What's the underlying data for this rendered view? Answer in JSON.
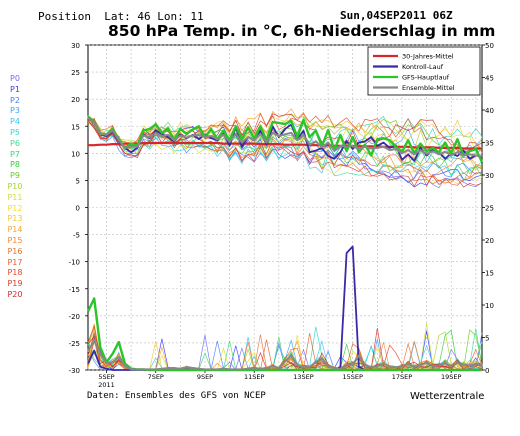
{
  "header": {
    "position_label": "Position",
    "lat_lon": "Lat: 46 Lon: 11",
    "run_date": "Sun,04SEP2011 06Z",
    "title": "850 hPa Temp. in °C, 6h-Niederschlag in mm"
  },
  "members": [
    "P0",
    "P1",
    "P2",
    "P3",
    "P4",
    "P5",
    "P6",
    "P7",
    "P8",
    "P9",
    "P10",
    "P11",
    "P12",
    "P13",
    "P14",
    "P15",
    "P16",
    "P17",
    "P18",
    "P19",
    "P20"
  ],
  "member_colors": [
    "#6f6ff7",
    "#3a3aff",
    "#4a7cff",
    "#3aa4ff",
    "#39c6ee",
    "#30d6c8",
    "#3adc9e",
    "#3ad870",
    "#35cc35",
    "#66cc22",
    "#a8d422",
    "#d8e030",
    "#f2dc3a",
    "#f5c437",
    "#f5a232",
    "#f08a2c",
    "#ee7030",
    "#ea5e2e",
    "#e24a2a",
    "#d83c2c",
    "#c82e2e"
  ],
  "footer": {
    "source": "Daten: Ensembles des GFS von NCEP",
    "brand": "Wetterzentrale"
  },
  "colors": {
    "climate": "#d9262a",
    "control": "#3a2aa8",
    "main": "#2bc42b",
    "ensemble": "#888888"
  },
  "chart_data": {
    "type": "line",
    "x_start": "2011-09-04 06Z",
    "x_step_hours": 6,
    "x_ticks": [
      "5SEP\n2011",
      "7SEP",
      "9SEP",
      "11SEP",
      "13SEP",
      "15SEP",
      "17SEP",
      "19SEP"
    ],
    "y_left": {
      "label": "850 hPa Temp. in °C",
      "range": [
        -30,
        30
      ],
      "ticks": [
        30,
        25,
        20,
        15,
        10,
        5,
        0,
        -5,
        -10,
        -15,
        -20,
        -25,
        -30
      ]
    },
    "y_right": {
      "label": "6h-Niederschlag in mm",
      "range": [
        0,
        50
      ],
      "ticks": [
        50,
        45,
        40,
        35,
        30,
        25,
        20,
        15,
        10,
        5,
        0
      ]
    },
    "grid": true,
    "legend_position": "top-right",
    "legend": [
      "30-Jahres-Mittel",
      "Kontroll-Lauf",
      "GFS-Hauptlauf",
      "Ensemble-Mittel"
    ],
    "series": [
      {
        "name": "30-Jahres-Mittel",
        "axis": "left",
        "values": [
          11.5,
          11.5,
          11.6,
          11.6,
          11.7,
          11.7,
          11.8,
          11.8,
          11.8,
          11.9,
          11.9,
          11.9,
          11.9,
          11.9,
          11.9,
          11.9,
          11.9,
          11.9,
          11.9,
          11.9,
          11.9,
          11.9,
          11.8,
          11.8,
          11.8,
          11.8,
          11.8,
          11.8,
          11.7,
          11.7,
          11.7,
          11.7,
          11.6,
          11.6,
          11.6,
          11.6,
          11.5,
          11.5,
          11.5,
          11.5,
          11.4,
          11.4,
          11.4,
          11.4,
          11.3,
          11.3,
          11.3,
          11.3,
          11.2,
          11.2,
          11.2,
          11.2,
          11.2,
          11.1,
          11.1,
          11.1,
          11.1,
          11.0,
          11.0,
          11.0,
          11.0,
          10.9,
          10.9,
          10.9,
          10.9
        ]
      },
      {
        "name": "Kontroll-Lauf",
        "axis": "left",
        "values": [
          16.5,
          15.8,
          13.5,
          13.2,
          14.0,
          12.2,
          11.0,
          10.2,
          11.0,
          13.5,
          12.8,
          14.2,
          13.6,
          13.0,
          12.2,
          13.5,
          12.8,
          13.4,
          12.6,
          13.5,
          12.8,
          12.4,
          13.6,
          11.4,
          14.8,
          11.2,
          13.0,
          12.4,
          14.2,
          11.6,
          15.0,
          13.0,
          14.5,
          15.3,
          12.6,
          14.2,
          10.2,
          10.5,
          11.0,
          9.5,
          9.0,
          10.2,
          12.3,
          10.8,
          12.0,
          12.2,
          13.0,
          11.4,
          12.0,
          11.0,
          11.5,
          8.8,
          9.8,
          8.6,
          11.0,
          9.6,
          10.8,
          10.2,
          9.0,
          10.0,
          9.5,
          10.5,
          9.0,
          9.6,
          9.4
        ]
      },
      {
        "name": "GFS-Hauptlauf",
        "axis": "left",
        "values": [
          16.8,
          15.8,
          13.6,
          13.5,
          14.5,
          12.6,
          11.0,
          11.8,
          11.4,
          14.2,
          14.5,
          15.3,
          13.8,
          14.6,
          12.4,
          14.5,
          13.6,
          14.4,
          15.0,
          13.0,
          14.5,
          12.6,
          14.2,
          12.4,
          15.0,
          12.6,
          14.8,
          12.7,
          15.0,
          12.4,
          15.8,
          15.6,
          15.4,
          16.0,
          13.0,
          16.1,
          13.0,
          14.2,
          11.3,
          14.3,
          10.6,
          13.4,
          10.4,
          13.0,
          10.2,
          11.6,
          9.6,
          12.6,
          12.8,
          12.4,
          11.2,
          10.3,
          12.4,
          10.0,
          11.8,
          10.4,
          11.0,
          10.2,
          12.0,
          10.0,
          12.6,
          9.6,
          10.4,
          10.8,
          8.4
        ]
      },
      {
        "name": "Ensemble-Mittel",
        "axis": "left",
        "values": [
          16.5,
          15.6,
          13.6,
          13.4,
          14.2,
          12.4,
          11.0,
          11.3,
          11.2,
          13.3,
          13.0,
          13.8,
          13.2,
          13.4,
          12.4,
          13.3,
          12.9,
          13.3,
          13.4,
          13.0,
          13.2,
          12.6,
          13.4,
          12.1,
          13.6,
          12.0,
          13.0,
          12.4,
          13.6,
          12.0,
          13.8,
          13.2,
          13.5,
          13.8,
          12.4,
          13.4,
          11.6,
          12.2,
          11.1,
          12.0,
          10.5,
          11.4,
          11.2,
          11.4,
          10.8,
          11.2,
          10.9,
          11.0,
          11.2,
          10.6,
          10.8,
          10.0,
          10.6,
          9.8,
          10.6,
          9.9,
          10.4,
          9.8,
          10.3,
          9.7,
          10.2,
          9.6,
          9.8,
          9.6,
          9.5
        ]
      },
      {
        "name": "Kontroll-Lauf",
        "axis": "right",
        "values": [
          1.0,
          3.0,
          0.5,
          0.2,
          0,
          0,
          0,
          0,
          0,
          0,
          0,
          0,
          0,
          0,
          0,
          0,
          0.1,
          0,
          0,
          0,
          0,
          0,
          0,
          0,
          0,
          0,
          0,
          0,
          0,
          0,
          0,
          0,
          0,
          0,
          0,
          0,
          0,
          0,
          0,
          0,
          0,
          0.5,
          18,
          19,
          0.5,
          0,
          0,
          0,
          0,
          0,
          0,
          0,
          0,
          0,
          0,
          0,
          0,
          0,
          0,
          0,
          0,
          0,
          0,
          0,
          0
        ]
      },
      {
        "name": "GFS-Hauptlauf",
        "axis": "right",
        "values": [
          9.0,
          11.0,
          3.5,
          1.2,
          2.5,
          4.3,
          1.0,
          0.2,
          0.1,
          0.1,
          0,
          0,
          0,
          0,
          0,
          0,
          0,
          0,
          0,
          0,
          0,
          0,
          0,
          0,
          0,
          0,
          0,
          0,
          0,
          0,
          0,
          0,
          0,
          0,
          0,
          0,
          0,
          0,
          0,
          0,
          0,
          0,
          0,
          0,
          0,
          0,
          0,
          0,
          0,
          0,
          0,
          0,
          0,
          0,
          0,
          0,
          0,
          0,
          0,
          0,
          0,
          0,
          0,
          0,
          0
        ]
      },
      {
        "name": "Ensemble-Mittel",
        "axis": "right",
        "values": [
          3.0,
          4.5,
          2.5,
          1.0,
          1.2,
          2.0,
          0.6,
          0.1,
          0.1,
          0.1,
          0.1,
          0.1,
          0.2,
          0.3,
          0.3,
          0.2,
          0.4,
          0.3,
          0.2,
          0.1,
          0.1,
          0.1,
          0.2,
          0.1,
          0.1,
          0.1,
          0.2,
          0.3,
          0.2,
          0.3,
          0.6,
          0.3,
          1.3,
          2.3,
          0.7,
          0.5,
          0.4,
          1.2,
          1.8,
          0.6,
          0.3,
          0.2,
          0.8,
          0.8,
          2.2,
          0.8,
          0.4,
          0.6,
          1.0,
          0.5,
          0.4,
          0.6,
          0.9,
          0.5,
          0.8,
          1.1,
          0.6,
          0.7,
          1.0,
          0.6,
          1.1,
          0.8,
          0.7,
          0.9,
          0.6
        ]
      }
    ]
  }
}
